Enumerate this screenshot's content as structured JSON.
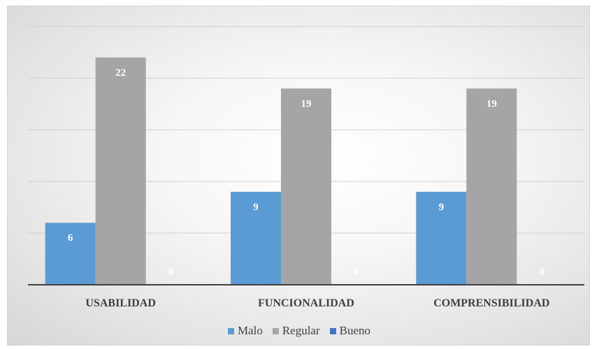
{
  "chart_data": {
    "type": "bar",
    "categories": [
      "USABILIDAD",
      "FUNCIONALIDAD",
      "COMPRENSIBILIDAD"
    ],
    "series": [
      {
        "name": "Malo",
        "values": [
          6,
          9,
          9
        ],
        "color": "#5b9bd5"
      },
      {
        "name": "Regular",
        "values": [
          22,
          19,
          19
        ],
        "color": "#a5a5a5"
      },
      {
        "name": "Bueno",
        "values": [
          0,
          0,
          0
        ],
        "color": "#4472c4"
      }
    ],
    "title": "",
    "xlabel": "",
    "ylabel": "",
    "ylim": [
      0,
      25
    ],
    "grid": true,
    "legend": "bottom",
    "data_labels": true
  }
}
